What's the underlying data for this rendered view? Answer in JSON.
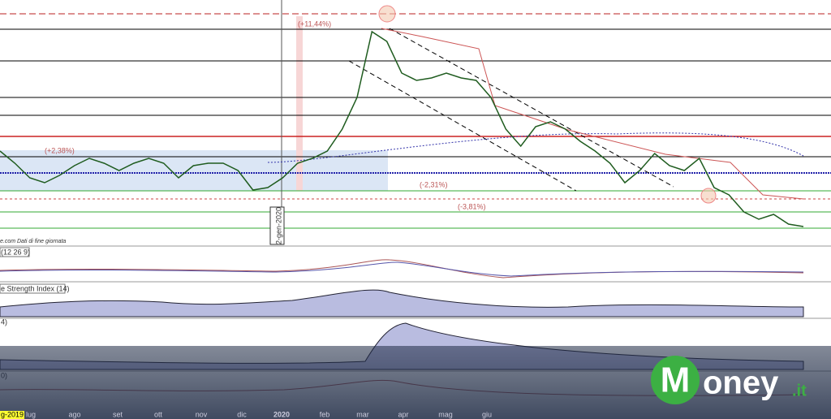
{
  "chart_data": {
    "type": "line",
    "values": [
      38,
      33,
      27,
      25,
      28,
      32,
      35,
      33,
      30,
      33,
      35,
      33,
      27,
      32,
      33,
      33,
      30,
      22,
      23,
      27,
      33,
      35,
      38,
      47,
      60,
      87,
      83,
      70,
      67,
      68,
      70,
      68,
      67,
      60,
      47,
      40,
      48,
      50,
      47,
      42,
      38,
      33,
      25,
      30,
      37,
      32,
      30,
      35,
      23,
      20,
      13,
      10,
      12,
      8,
      7
    ],
    "color": "#1f5c1f",
    "ylim": [
      0,
      100
    ],
    "annotations": [
      "(+11,44%)",
      "(+2,38%)",
      "(-2,31%)",
      "(-3,81%)"
    ],
    "marker_label": "2-gen-2020",
    "source": "e.com Dati di fine giornata",
    "panels": [
      "(12 26 9)",
      "e Strength Index (14)",
      "4)",
      "0)"
    ],
    "months": [
      "lug",
      "ago",
      "set",
      "ott",
      "nov",
      "dic",
      "2020",
      "feb",
      "mar",
      "apr",
      "mag",
      "giu"
    ],
    "start_label": "g-2019",
    "logo": {
      "first": "M",
      "rest": "oney",
      "suffix": ".it"
    }
  }
}
